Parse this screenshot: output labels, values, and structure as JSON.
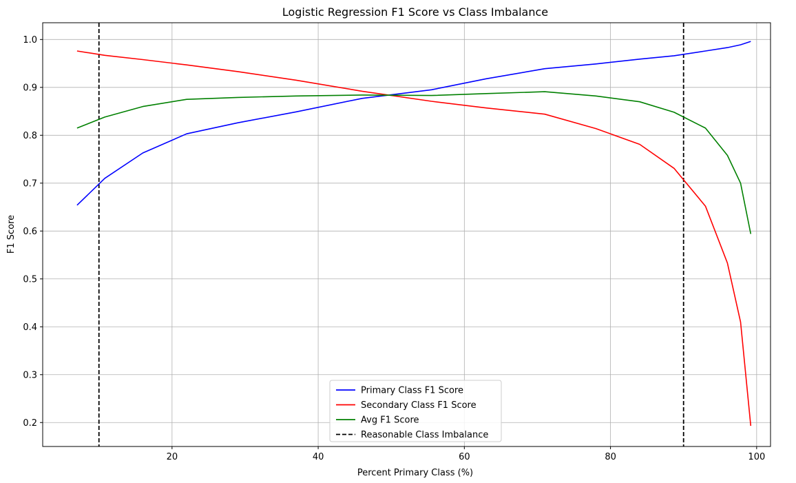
{
  "chart_data": {
    "type": "line",
    "title": "Logistic Regression F1 Score vs Class Imbalance",
    "xlabel": "Percent Primary Class (%)",
    "ylabel": "F1 Score",
    "xlim": [
      2.3,
      101.9
    ],
    "ylim": [
      0.15,
      1.035
    ],
    "xticks": [
      20,
      40,
      60,
      80,
      100
    ],
    "yticks": [
      0.2,
      0.3,
      0.4,
      0.5,
      0.6,
      0.7,
      0.8,
      0.9,
      1.0
    ],
    "xtick_labels": [
      "20",
      "40",
      "60",
      "80",
      "100"
    ],
    "ytick_labels": [
      "0.2",
      "0.3",
      "0.4",
      "0.5",
      "0.6",
      "0.7",
      "0.8",
      "0.9",
      "1.0"
    ],
    "grid": true,
    "legend_position": "bottom-center",
    "series": [
      {
        "name": "Primary Class F1 Score",
        "color": "#0000ff",
        "style": "solid",
        "x": [
          7,
          10.8,
          16,
          22,
          29,
          37,
          46,
          55.5,
          63,
          71,
          78,
          84,
          88.7,
          93,
          96,
          97.8,
          99.2
        ],
        "y": [
          0.654,
          0.71,
          0.763,
          0.803,
          0.826,
          0.849,
          0.877,
          0.895,
          0.918,
          0.939,
          0.949,
          0.959,
          0.966,
          0.976,
          0.983,
          0.989,
          0.996
        ]
      },
      {
        "name": "Secondary Class F1 Score",
        "color": "#ff0000",
        "style": "solid",
        "x": [
          7,
          10.8,
          16,
          22,
          29,
          37,
          46,
          55.5,
          63,
          71,
          78,
          84,
          88.7,
          93,
          96,
          97.8,
          99.2
        ],
        "y": [
          0.976,
          0.967,
          0.958,
          0.947,
          0.933,
          0.915,
          0.892,
          0.871,
          0.857,
          0.844,
          0.814,
          0.781,
          0.731,
          0.652,
          0.533,
          0.41,
          0.193
        ]
      },
      {
        "name": "Avg F1 Score",
        "color": "#008000",
        "style": "solid",
        "x": [
          7,
          10.8,
          16,
          22,
          29,
          37,
          46,
          55.5,
          63,
          71,
          78,
          84,
          88.7,
          93,
          96,
          97.8,
          99.2
        ],
        "y": [
          0.815,
          0.838,
          0.86,
          0.875,
          0.879,
          0.882,
          0.884,
          0.883,
          0.887,
          0.891,
          0.882,
          0.87,
          0.848,
          0.815,
          0.758,
          0.7,
          0.594
        ]
      },
      {
        "name": "Reasonable Class Imbalance",
        "color": "#000000",
        "style": "dashed",
        "vlines": [
          10,
          90
        ]
      }
    ]
  }
}
